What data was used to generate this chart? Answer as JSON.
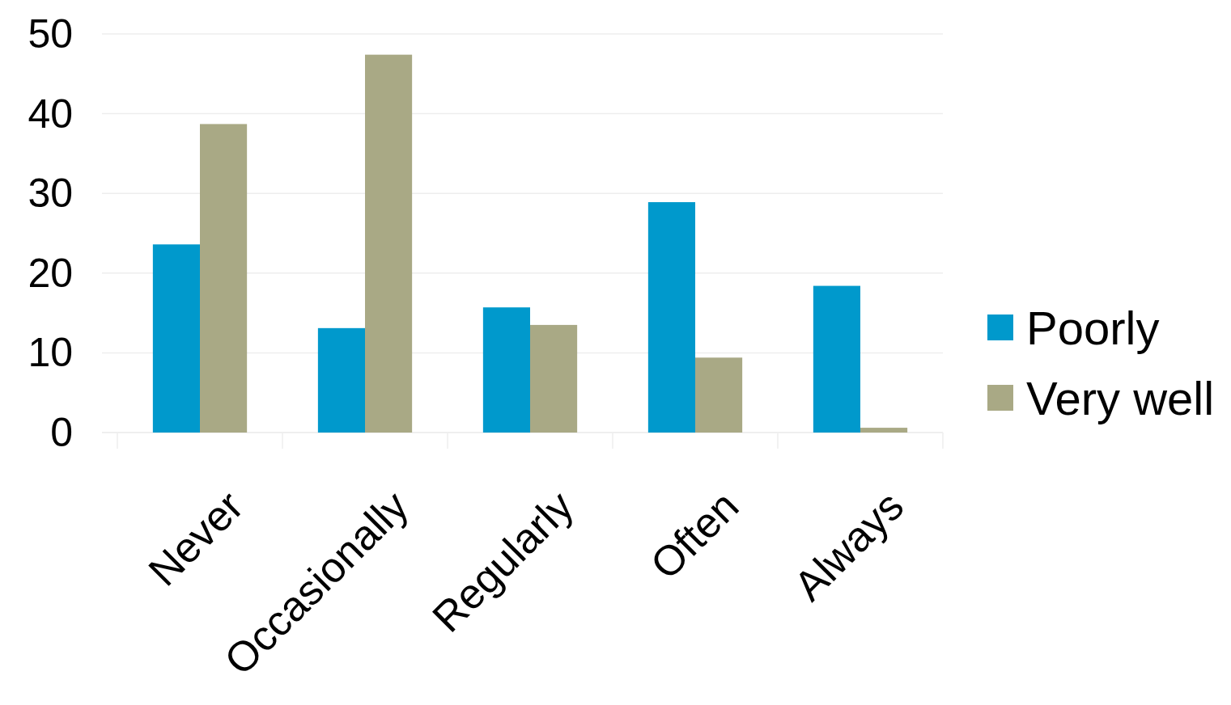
{
  "chart_data": {
    "type": "bar",
    "categories": [
      "Never",
      "Occasionally",
      "Regularly",
      "Often",
      "Always"
    ],
    "series": [
      {
        "name": "Poorly",
        "color": "#0099cc",
        "values": [
          23.6,
          13.1,
          15.7,
          28.9,
          18.4
        ]
      },
      {
        "name": "Very well",
        "color": "#a9a985",
        "values": [
          38.7,
          47.4,
          13.5,
          9.4,
          0.6
        ]
      }
    ],
    "ylim": [
      0,
      50
    ],
    "yticks": [
      0,
      10,
      20,
      30,
      40,
      50
    ],
    "grid": "y",
    "legend": "right"
  }
}
